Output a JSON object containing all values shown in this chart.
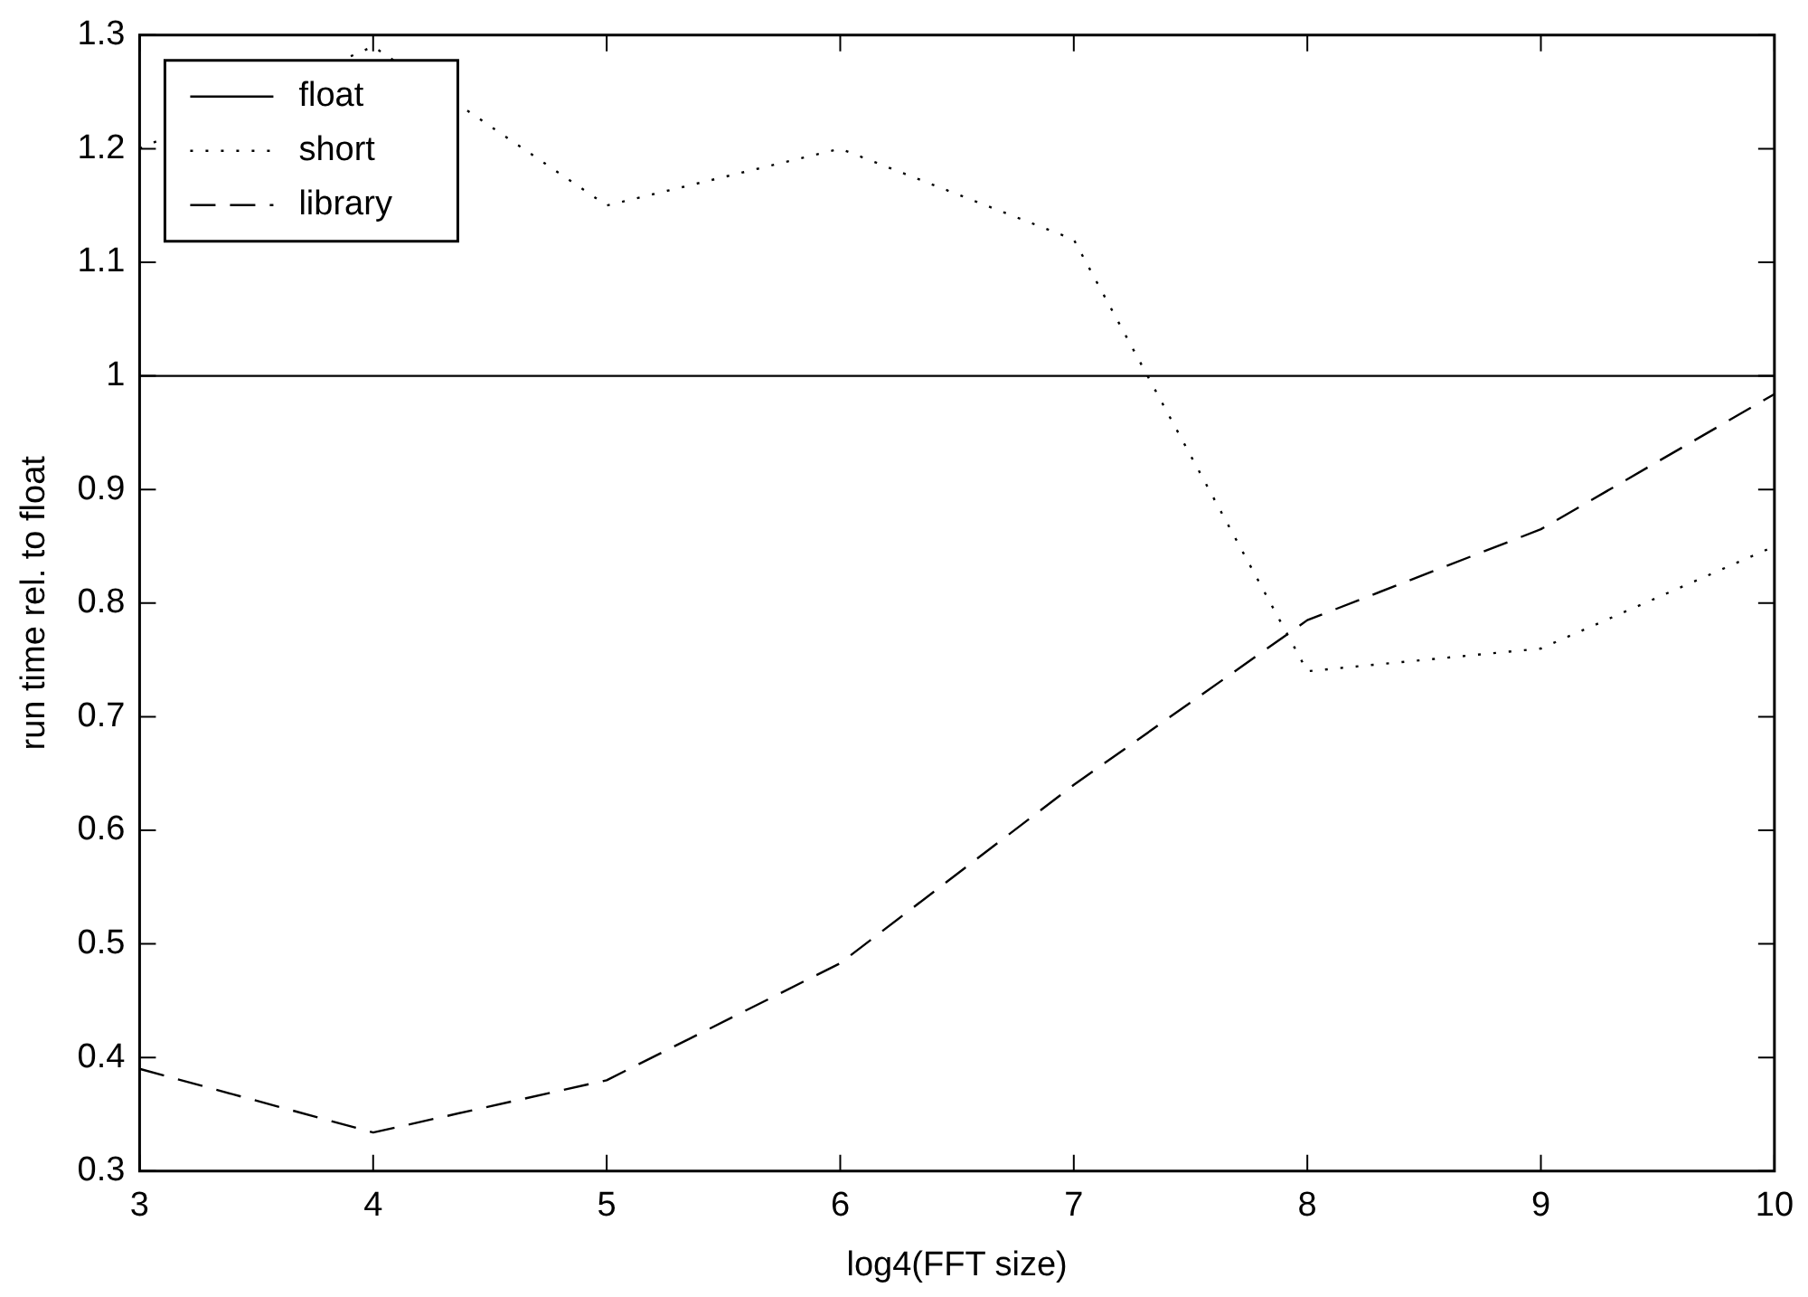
{
  "chart_data": {
    "type": "line",
    "xlabel": "log4(FFT size)",
    "ylabel": "run time rel. to float",
    "x": [
      3,
      4,
      5,
      6,
      7,
      8,
      9,
      10
    ],
    "series": [
      {
        "name": "float",
        "color": "#000000",
        "line_style": "solid",
        "values": [
          1,
          1,
          1,
          1,
          1,
          1,
          1,
          1
        ]
      },
      {
        "name": "short",
        "color": "#000000",
        "line_style": "dotted",
        "values": [
          1.2,
          1.29,
          1.15,
          1.2,
          1.12,
          0.74,
          0.76,
          0.85
        ]
      },
      {
        "name": "library",
        "color": "#000000",
        "line_style": "dashed",
        "values": [
          0.39,
          0.334,
          0.38,
          0.483,
          0.64,
          0.785,
          0.865,
          0.984
        ]
      }
    ],
    "xlim": [
      3,
      10
    ],
    "xticks": [
      3,
      4,
      5,
      6,
      7,
      8,
      9,
      10
    ],
    "ylim": [
      0.3,
      1.3
    ],
    "yticks": [
      0.3,
      0.4,
      0.5,
      0.6,
      0.7,
      0.8,
      0.9,
      1,
      1.1,
      1.2,
      1.3
    ],
    "grid": false,
    "legend": "top left",
    "marker": "none"
  }
}
